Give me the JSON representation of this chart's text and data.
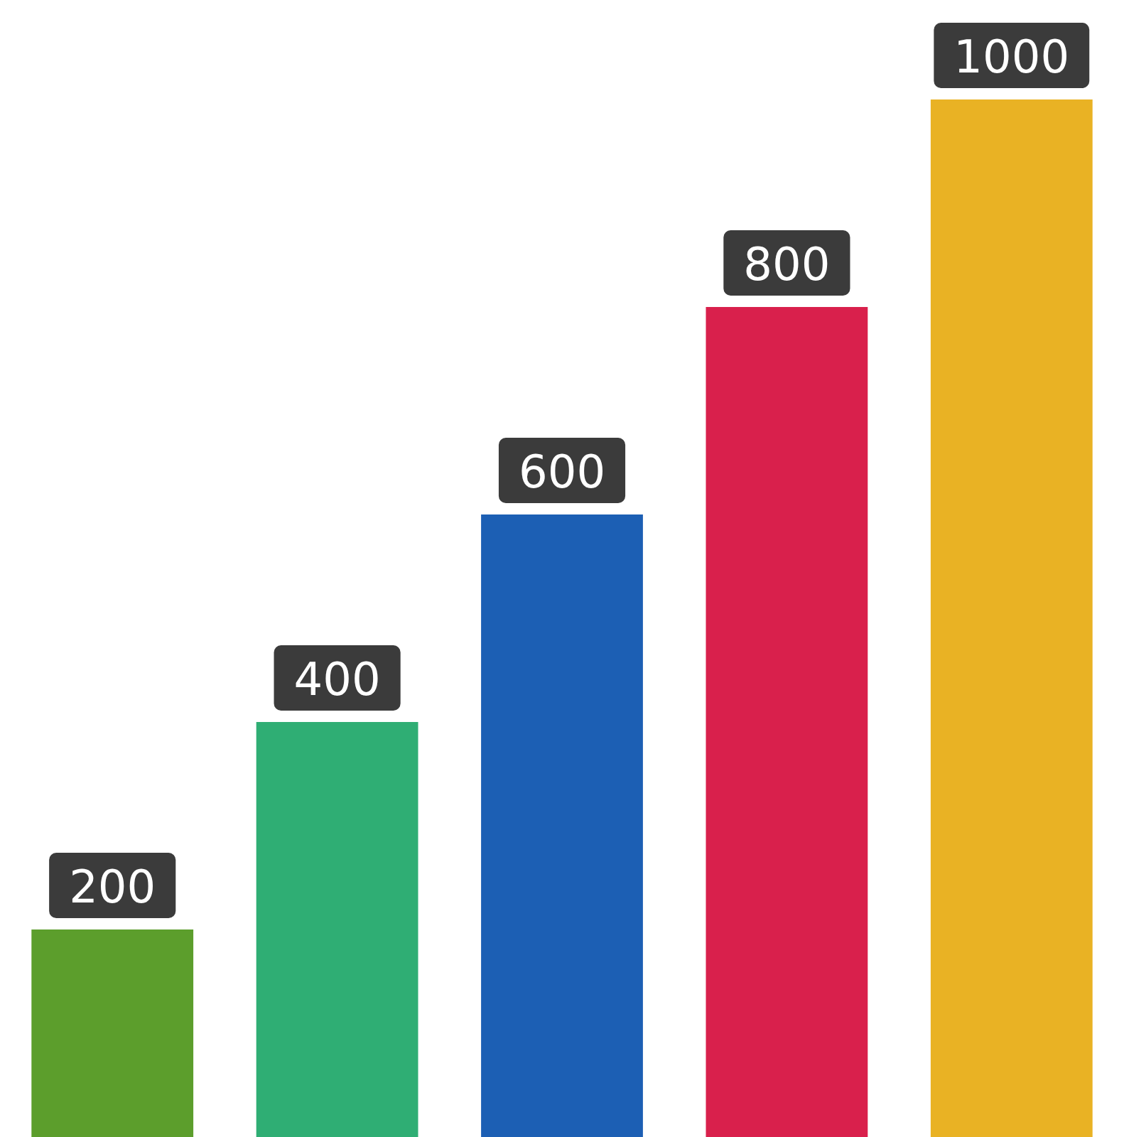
{
  "chart_data": {
    "type": "bar",
    "categories": [
      null,
      null,
      null,
      null,
      null
    ],
    "values": [
      200,
      400,
      600,
      800,
      1000
    ],
    "colors": [
      "#5c9e2c",
      "#2fae74",
      "#1c5fb4",
      "#d9204c",
      "#e9b224"
    ],
    "data_labels": true
  }
}
